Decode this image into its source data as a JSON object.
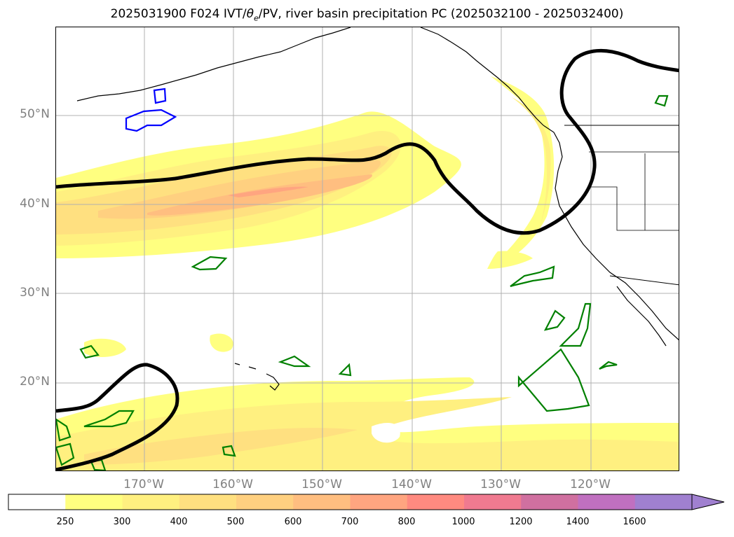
{
  "title": {
    "prefix": "2025031900 F024 IVT/",
    "theta": "θ",
    "theta_sub": "e",
    "suffix": "/PV, river basin precipitation PC (2025032100 - 2025032400)"
  },
  "lat_labels": [
    "50°N",
    "40°N",
    "30°N",
    "20°N"
  ],
  "lon_labels": [
    "170°W",
    "160°W",
    "150°W",
    "140°W",
    "130°W",
    "120°W"
  ],
  "colorbar": {
    "ticks": [
      "250",
      "300",
      "400",
      "500",
      "600",
      "700",
      "800",
      "1000",
      "1200",
      "1400",
      "1600"
    ],
    "colors": [
      "#ffffff",
      "#ffff80",
      "#fff080",
      "#ffe080",
      "#ffd080",
      "#ffbe80",
      "#ffa580",
      "#ff8a80",
      "#f07a90",
      "#d070a0",
      "#c070c0",
      "#a080d0"
    ]
  },
  "colors": {
    "contour_theta": "#000000",
    "contour_pv_pos": "#008000",
    "contour_pv_neg": "#0000ff",
    "gridline": "#b0b0b0",
    "coast": "#000000"
  }
}
